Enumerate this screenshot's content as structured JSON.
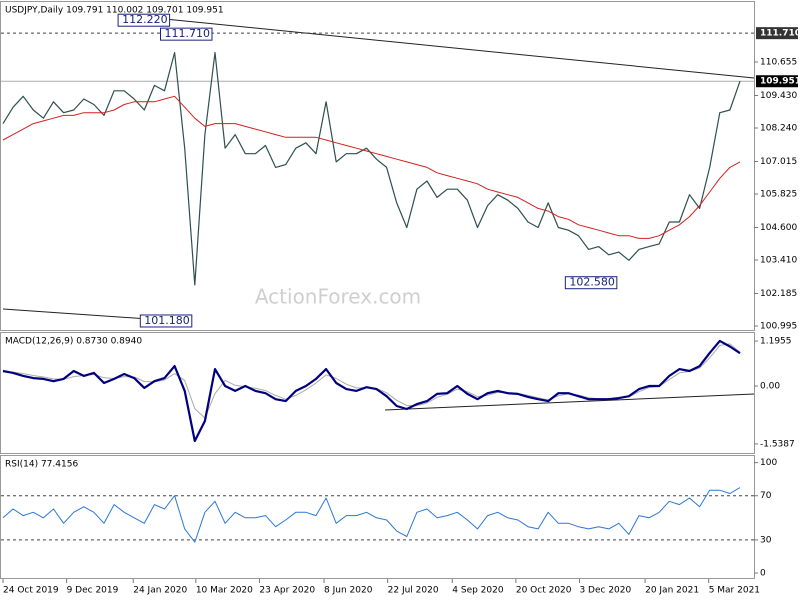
{
  "watermark": "ActionForex.com",
  "chart_data": [
    {
      "type": "price",
      "title": "USDJPY,Daily  109.791 110.002 109.701 109.951",
      "ylim": [
        100.85,
        112.85
      ],
      "yticks": [
        100.995,
        102.185,
        {
          "value": 103.41,
          "label": "103.410"
        },
        {
          "value": 104.6,
          "label": "104.600"
        },
        105.825,
        107.015,
        {
          "value": 108.24,
          "label": "108.240"
        },
        {
          "value": 109.43,
          "label": "109.430"
        },
        110.655
      ],
      "levels": [
        {
          "value": 111.71,
          "label": "111.710",
          "style": "dashed"
        },
        {
          "value": 109.951,
          "label": "109.951",
          "style": "solid"
        }
      ],
      "annotations": [
        {
          "x": 16.6,
          "value": 112.22,
          "label": "112.220"
        },
        {
          "x": 20.8,
          "value": 111.71,
          "label": "111.710"
        },
        {
          "x": 18.8,
          "value": 101.18,
          "label": "101.180"
        },
        {
          "x": 60.9,
          "value": 102.58,
          "label": "102.580"
        }
      ],
      "series": [
        {
          "color": "#2f4f4f",
          "width": 1.2,
          "values": [
            108.4,
            109.0,
            109.4,
            108.9,
            108.6,
            109.2,
            108.8,
            108.9,
            109.3,
            109.1,
            108.7,
            109.6,
            109.6,
            109.3,
            108.9,
            109.8,
            109.6,
            111.0,
            107.5,
            102.5,
            108.0,
            111.0,
            107.5,
            108.0,
            107.3,
            107.3,
            107.6,
            106.8,
            106.9,
            107.5,
            107.7,
            107.3,
            109.2,
            107.0,
            107.3,
            107.3,
            107.5,
            107.1,
            106.8,
            105.5,
            104.6,
            106.0,
            106.3,
            105.7,
            106.0,
            106.0,
            105.6,
            104.6,
            105.4,
            105.8,
            105.6,
            105.3,
            104.8,
            104.6,
            105.5,
            104.6,
            104.5,
            104.3,
            103.8,
            103.9,
            103.6,
            103.7,
            103.4,
            103.8,
            103.9,
            104.0,
            104.8,
            104.8,
            105.8,
            105.3,
            106.8,
            108.8,
            108.9,
            109.951
          ]
        },
        {
          "color": "#d42020",
          "width": 1,
          "values": [
            107.8,
            108.0,
            108.2,
            108.4,
            108.5,
            108.6,
            108.7,
            108.7,
            108.8,
            108.8,
            108.8,
            108.9,
            109.1,
            109.2,
            109.2,
            109.2,
            109.3,
            109.4,
            109.0,
            108.6,
            108.3,
            108.4,
            108.4,
            108.4,
            108.3,
            108.2,
            108.1,
            108.0,
            107.9,
            107.9,
            107.9,
            107.9,
            107.8,
            107.7,
            107.6,
            107.5,
            107.4,
            107.3,
            107.2,
            107.1,
            107.0,
            106.9,
            106.8,
            106.6,
            106.5,
            106.4,
            106.3,
            106.2,
            106.0,
            105.9,
            105.8,
            105.7,
            105.5,
            105.3,
            105.2,
            105.0,
            104.9,
            104.7,
            104.6,
            104.5,
            104.4,
            104.3,
            104.3,
            104.2,
            104.2,
            104.3,
            104.5,
            104.7,
            105.0,
            105.4,
            105.9,
            106.4,
            106.8,
            107.0
          ]
        }
      ]
    },
    {
      "type": "macd",
      "title": "MACD(12,26,9) 0.8730 0.8940",
      "ylim": [
        -1.78,
        1.41
      ],
      "yticks": [
        1.1955,
        {
          "value": 0,
          "label": "0.00"
        },
        -1.5387
      ],
      "series": [
        {
          "color": "#aaaaaa",
          "width": 1,
          "values": [
            0.38,
            0.37,
            0.33,
            0.28,
            0.24,
            0.19,
            0.18,
            0.25,
            0.28,
            0.31,
            0.22,
            0.2,
            0.25,
            0.24,
            0.12,
            0.11,
            0.16,
            0.33,
            0.15,
            -0.6,
            -0.85,
            -0.2,
            0.15,
            0.02,
            -0.02,
            -0.06,
            -0.12,
            -0.25,
            -0.35,
            -0.25,
            -0.1,
            0.08,
            0.3,
            0.2,
            0.05,
            -0.05,
            -0.05,
            -0.06,
            -0.18,
            -0.38,
            -0.52,
            -0.52,
            -0.45,
            -0.3,
            -0.22,
            -0.08,
            -0.15,
            -0.28,
            -0.24,
            -0.17,
            -0.18,
            -0.2,
            -0.25,
            -0.31,
            -0.37,
            -0.26,
            -0.21,
            -0.24,
            -0.31,
            -0.34,
            -0.35,
            -0.33,
            -0.29,
            -0.15,
            -0.04,
            -0.01,
            0.17,
            0.35,
            0.39,
            0.48,
            0.75,
            1.08,
            1.12,
            0.894
          ]
        },
        {
          "color": "#000080",
          "width": 2.2,
          "values": [
            0.4,
            0.35,
            0.27,
            0.21,
            0.19,
            0.13,
            0.19,
            0.4,
            0.27,
            0.35,
            0.08,
            0.19,
            0.32,
            0.21,
            -0.05,
            0.13,
            0.21,
            0.53,
            -0.13,
            -1.46,
            -0.93,
            0.45,
            0,
            -0.13,
            0,
            -0.13,
            -0.19,
            -0.35,
            -0.4,
            -0.13,
            0,
            0.19,
            0.45,
            0.08,
            -0.08,
            -0.13,
            -0.03,
            -0.08,
            -0.27,
            -0.53,
            -0.61,
            -0.48,
            -0.4,
            -0.21,
            -0.19,
            0,
            -0.21,
            -0.35,
            -0.19,
            -0.13,
            -0.19,
            -0.21,
            -0.29,
            -0.35,
            -0.4,
            -0.19,
            -0.19,
            -0.27,
            -0.35,
            -0.35,
            -0.35,
            -0.32,
            -0.27,
            -0.08,
            0,
            0,
            0.27,
            0.45,
            0.4,
            0.53,
            0.88,
            1.2,
            1.05,
            0.873
          ]
        }
      ]
    },
    {
      "type": "rsi",
      "title": "RSI(14) 77.4156",
      "ylim": [
        -4.5,
        106
      ],
      "yticks": [
        100,
        70,
        30,
        0
      ],
      "levels": [
        {
          "value": 70,
          "style": "dashed"
        },
        {
          "value": 30,
          "style": "dashed"
        }
      ],
      "xlim": [
        0,
        73
      ],
      "xticks": [
        {
          "value": 0,
          "label": "24 Oct 2019"
        },
        {
          "value": 6.3,
          "label": "9 Dec 2019"
        },
        {
          "value": 12.9,
          "label": "24 Jan 2020"
        },
        {
          "value": 19.1,
          "label": "10 Mar 2020"
        },
        {
          "value": 25.4,
          "label": "23 Apr 2020"
        },
        {
          "value": 31.8,
          "label": "8 Jun 2020"
        },
        {
          "value": 38.1,
          "label": "22 Jul 2020"
        },
        {
          "value": 44.5,
          "label": "4 Sep 2020"
        },
        {
          "value": 50.8,
          "label": "20 Oct 2020"
        },
        {
          "value": 57.1,
          "label": "3 Dec 2020"
        },
        {
          "value": 63.6,
          "label": "20 Jan 2021"
        },
        {
          "value": 69.9,
          "label": "5 Mar 2021"
        }
      ],
      "series": [
        {
          "color": "#2a78d6",
          "width": 1,
          "values": [
            50,
            58,
            52,
            55,
            50,
            58,
            45,
            55,
            60,
            55,
            45,
            62,
            55,
            50,
            45,
            62,
            58,
            70,
            40,
            28,
            55,
            65,
            45,
            55,
            50,
            50,
            52,
            42,
            48,
            55,
            55,
            52,
            68,
            45,
            52,
            52,
            55,
            50,
            48,
            38,
            33,
            55,
            58,
            50,
            52,
            55,
            48,
            40,
            52,
            55,
            50,
            48,
            42,
            40,
            55,
            45,
            45,
            42,
            40,
            42,
            40,
            45,
            35,
            52,
            50,
            55,
            65,
            62,
            68,
            60,
            75,
            75,
            72,
            77.4156
          ]
        }
      ]
    }
  ]
}
